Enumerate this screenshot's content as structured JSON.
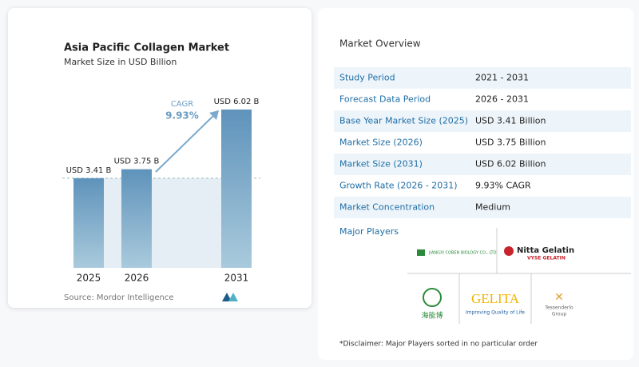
{
  "chart_data": {
    "type": "bar",
    "title": "Asia Pacific Collagen Market",
    "subtitle": "Market Size in USD Billion",
    "categories": [
      "2025",
      "2026",
      "2031"
    ],
    "values": [
      3.41,
      3.75,
      6.02
    ],
    "value_labels": [
      "USD 3.41 B",
      "USD 3.75 B",
      "USD 6.02 B"
    ],
    "annotations": [
      "CAGR",
      "9.93%"
    ],
    "source": "Source:  Mordor Intelligence",
    "color": "#6a9cc2"
  },
  "overview": {
    "title": "Market Overview",
    "rows": [
      [
        "Study Period",
        "2021 - 2031"
      ],
      [
        "Forecast Data Period",
        "2026 - 2031"
      ],
      [
        "Base Year Market Size (2025)",
        "USD 3.41 Billion"
      ],
      [
        "Market Size (2026)",
        "USD 3.75 Billion"
      ],
      [
        "Market Size (2031)",
        "USD 6.02 Billion"
      ],
      [
        "Growth Rate (2026 - 2031)",
        "9.93% CAGR"
      ],
      [
        "Market Concentration",
        "Medium"
      ]
    ]
  },
  "major_players": {
    "title": "Major Players",
    "logos": [
      "JIANGXI COBEN BIOLOGY CO., LTD",
      "Nitta Gelatin",
      "VYSE GELATIN",
      "海能博",
      "GELITA",
      "Improving Quality of Life",
      "Tessenderlo",
      "Group"
    ]
  },
  "disclaimer": "*Disclaimer: Major Players sorted in no particular order"
}
